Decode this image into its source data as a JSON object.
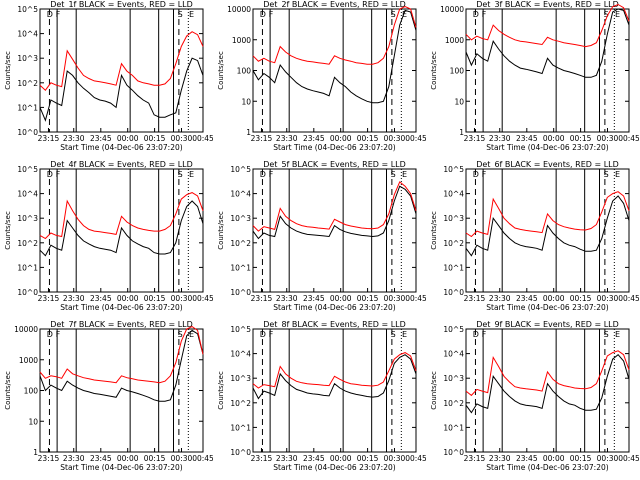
{
  "chart_data": [
    {
      "type": "line",
      "title": "Det_1f BLACK = Events, RED = LLD",
      "ylabel": "Counts/sec",
      "xlabel": "Start Time (04-Dec-06 23:07:20)",
      "xticks": [
        "23:15",
        "23:30",
        "23:45",
        "00:00",
        "00:15",
        "00:30",
        "00:45"
      ],
      "yscale": "log",
      "ylim": [
        1,
        100000
      ],
      "yticks": [
        "10^0",
        "10^1",
        "10^2",
        "10^3",
        "10^4",
        "10^5"
      ],
      "flags": [
        "D",
        "F",
        "S",
        "E"
      ],
      "series": [
        {
          "color": "#000000",
          "values": [
            10.0,
            3,
            20,
            15,
            12,
            300,
            200,
            100,
            60,
            40,
            25,
            20,
            18,
            15,
            10,
            200,
            80,
            50,
            30,
            20,
            15,
            5,
            4,
            4,
            5,
            6,
            50,
            300,
            1000,
            800,
            200
          ]
        },
        {
          "color": "#ff0000",
          "values": [
            80,
            50,
            100,
            80,
            70,
            2000,
            900,
            400,
            200,
            150,
            120,
            110,
            100,
            90,
            80,
            600,
            300,
            200,
            120,
            100,
            90,
            80,
            80,
            90,
            150,
            600,
            3000,
            8000,
            12000,
            9000,
            3000
          ]
        }
      ]
    },
    {
      "type": "line",
      "title": "Det_2f BLACK = Events, RED = LLD",
      "ylabel": "Counts/sec",
      "xlabel": "Start Time (04-Dec-06 23:07:20)",
      "xticks": [
        "23:15",
        "23:30",
        "23:45",
        "00:00",
        "00:15",
        "00:30",
        "00:45"
      ],
      "yscale": "log",
      "ylim": [
        1,
        10000
      ],
      "yticks": [
        "1",
        "10",
        "100",
        "1000",
        "10000"
      ],
      "flags": [
        "D",
        "F",
        "S",
        "E"
      ],
      "series": [
        {
          "color": "#000000",
          "values": [
            100,
            50,
            80,
            60,
            40,
            150,
            90,
            60,
            40,
            30,
            25,
            22,
            20,
            18,
            15,
            60,
            40,
            30,
            20,
            15,
            12,
            10,
            9,
            9,
            10,
            30,
            300,
            3000,
            9000,
            8000,
            2000
          ]
        },
        {
          "color": "#ff0000",
          "values": [
            300,
            200,
            250,
            200,
            180,
            600,
            400,
            300,
            250,
            220,
            200,
            190,
            180,
            170,
            160,
            300,
            250,
            220,
            200,
            180,
            170,
            160,
            160,
            180,
            250,
            600,
            3000,
            10000,
            12000,
            10000,
            2500
          ]
        }
      ]
    },
    {
      "type": "line",
      "title": "Det_3f BLACK = Events, RED = LLD",
      "ylabel": "Counts/sec",
      "xlabel": "Start Time (04-Dec-06 23:07:20)",
      "xticks": [
        "23:15",
        "23:30",
        "23:45",
        "00:00",
        "00:15",
        "00:30",
        "00:45"
      ],
      "yscale": "log",
      "ylim": [
        1,
        10000
      ],
      "yticks": [
        "1",
        "10",
        "100",
        "1000",
        "10000"
      ],
      "flags": [
        "D",
        "F",
        "S",
        "E"
      ],
      "series": [
        {
          "color": "#000000",
          "values": [
            400,
            150,
            350,
            250,
            200,
            900,
            500,
            300,
            200,
            150,
            120,
            110,
            100,
            90,
            80,
            250,
            150,
            120,
            100,
            90,
            80,
            70,
            60,
            60,
            70,
            200,
            1500,
            8000,
            10000,
            9000,
            3000
          ]
        },
        {
          "color": "#ff0000",
          "values": [
            1500,
            1000,
            1300,
            1100,
            1000,
            3000,
            2000,
            1500,
            1200,
            1000,
            900,
            850,
            800,
            750,
            700,
            1200,
            1000,
            900,
            800,
            750,
            700,
            650,
            600,
            650,
            800,
            2000,
            6000,
            12000,
            14000,
            11000,
            4000
          ]
        }
      ]
    },
    {
      "type": "line",
      "title": "Det_4f BLACK = Events, RED = LLD",
      "ylabel": "Counts/sec",
      "xlabel": "Start Time (04-Dec-06 23:07:20)",
      "xticks": [
        "23:15",
        "23:30",
        "23:45",
        "00:00",
        "00:15",
        "00:30",
        "00:45"
      ],
      "yscale": "log",
      "ylim": [
        1,
        100000
      ],
      "yticks": [
        "10^0",
        "10^1",
        "10^2",
        "10^3",
        "10^4",
        "10^5"
      ],
      "flags": [
        "D",
        "F",
        "S",
        "E"
      ],
      "series": [
        {
          "color": "#000000",
          "values": [
            50,
            30,
            80,
            60,
            50,
            800,
            400,
            200,
            120,
            90,
            70,
            60,
            55,
            50,
            40,
            400,
            200,
            120,
            90,
            70,
            60,
            40,
            35,
            35,
            40,
            100,
            800,
            3000,
            5000,
            3000,
            600
          ]
        },
        {
          "color": "#ff0000",
          "values": [
            200,
            150,
            250,
            200,
            180,
            5000,
            2000,
            900,
            500,
            350,
            300,
            280,
            260,
            240,
            220,
            1200,
            700,
            500,
            400,
            350,
            320,
            300,
            300,
            350,
            500,
            1500,
            6000,
            9000,
            11000,
            8000,
            2000
          ]
        }
      ]
    },
    {
      "type": "line",
      "title": "Det_5f BLACK = Events, RED = LLD",
      "ylabel": "Counts/sec",
      "xlabel": "Start Time (04-Dec-06 23:07:20)",
      "xticks": [
        "23:15",
        "23:30",
        "23:45",
        "00:00",
        "00:15",
        "00:30",
        "00:45"
      ],
      "yscale": "log",
      "ylim": [
        1,
        100000
      ],
      "yticks": [
        "10^0",
        "10^1",
        "10^2",
        "10^3",
        "10^4",
        "10^5"
      ],
      "flags": [
        "D",
        "F",
        "S",
        "E"
      ],
      "series": [
        {
          "color": "#000000",
          "values": [
            300,
            150,
            250,
            200,
            180,
            1200,
            600,
            400,
            300,
            250,
            220,
            210,
            200,
            190,
            180,
            500,
            350,
            280,
            240,
            220,
            200,
            190,
            180,
            190,
            250,
            800,
            5000,
            20000,
            15000,
            8000,
            1500
          ]
        },
        {
          "color": "#ff0000",
          "values": [
            500,
            300,
            450,
            400,
            350,
            2500,
            1200,
            800,
            600,
            500,
            450,
            430,
            400,
            380,
            360,
            900,
            700,
            550,
            480,
            440,
            400,
            380,
            370,
            400,
            550,
            1500,
            9000,
            30000,
            20000,
            10000,
            2000
          ]
        }
      ]
    },
    {
      "type": "line",
      "title": "Det_6f BLACK = Events, RED = LLD",
      "ylabel": "Counts/sec",
      "xlabel": "Start Time (04-Dec-06 23:07:20)",
      "xticks": [
        "23:15",
        "23:30",
        "23:45",
        "00:00",
        "00:15",
        "00:30",
        "00:45"
      ],
      "yscale": "log",
      "ylim": [
        1,
        100000
      ],
      "yticks": [
        "10^0",
        "10^1",
        "10^2",
        "10^3",
        "10^4",
        "10^5"
      ],
      "flags": [
        "D",
        "F",
        "S",
        "E"
      ],
      "series": [
        {
          "color": "#000000",
          "values": [
            60,
            30,
            80,
            60,
            50,
            1000,
            500,
            250,
            150,
            100,
            80,
            70,
            65,
            60,
            50,
            500,
            250,
            150,
            100,
            80,
            70,
            55,
            45,
            45,
            50,
            150,
            1000,
            5000,
            8000,
            4000,
            800
          ]
        },
        {
          "color": "#ff0000",
          "values": [
            250,
            180,
            300,
            250,
            220,
            6000,
            2500,
            1000,
            600,
            400,
            350,
            320,
            300,
            280,
            260,
            1500,
            800,
            550,
            450,
            400,
            360,
            340,
            330,
            380,
            550,
            1800,
            7000,
            10000,
            12000,
            8000,
            2000
          ]
        }
      ]
    },
    {
      "type": "line",
      "title": "Det_7f BLACK = Events, RED = LLD",
      "ylabel": "Counts/sec",
      "xlabel": "Start Time (04-Dec-06 23:07:20)",
      "xticks": [
        "23:15",
        "23:30",
        "23:45",
        "00:00",
        "00:15",
        "00:30",
        "00:45"
      ],
      "yscale": "log",
      "ylim": [
        1,
        10000
      ],
      "yticks": [
        "1",
        "10",
        "100",
        "1000",
        "10000"
      ],
      "flags": [
        "D",
        "F",
        "S",
        "E"
      ],
      "series": [
        {
          "color": "#000000",
          "values": [
            300,
            100,
            150,
            120,
            100,
            200,
            150,
            120,
            100,
            90,
            80,
            75,
            70,
            65,
            60,
            120,
            100,
            90,
            80,
            70,
            60,
            50,
            45,
            45,
            50,
            150,
            1000,
            6000,
            9000,
            7000,
            1500
          ]
        },
        {
          "color": "#ff0000",
          "values": [
            400,
            250,
            300,
            280,
            250,
            500,
            350,
            300,
            260,
            240,
            220,
            210,
            200,
            190,
            180,
            300,
            260,
            240,
            220,
            210,
            200,
            190,
            180,
            200,
            300,
            800,
            4000,
            10000,
            12000,
            9000,
            1500
          ]
        }
      ]
    },
    {
      "type": "line",
      "title": "Det_8f BLACK = Events, RED = LLD",
      "ylabel": "Counts/sec",
      "xlabel": "Start Time (04-Dec-06 23:07:20)",
      "xticks": [
        "23:15",
        "23:30",
        "23:45",
        "00:00",
        "00:15",
        "00:30",
        "00:45"
      ],
      "yscale": "log",
      "ylim": [
        1,
        100000
      ],
      "yticks": [
        "10^0",
        "10^1",
        "10^2",
        "10^3",
        "10^4",
        "10^5"
      ],
      "flags": [
        "D",
        "F",
        "S",
        "E"
      ],
      "series": [
        {
          "color": "#000000",
          "values": [
            400,
            150,
            300,
            250,
            200,
            1500,
            800,
            500,
            350,
            300,
            250,
            230,
            220,
            200,
            190,
            600,
            400,
            300,
            250,
            220,
            200,
            180,
            170,
            180,
            250,
            800,
            4000,
            7000,
            9000,
            6000,
            1500
          ]
        },
        {
          "color": "#ff0000",
          "values": [
            600,
            400,
            550,
            500,
            450,
            3000,
            1500,
            1000,
            750,
            650,
            600,
            570,
            550,
            520,
            500,
            1200,
            900,
            700,
            600,
            560,
            520,
            500,
            480,
            520,
            700,
            2000,
            6000,
            9000,
            11000,
            8000,
            2000
          ]
        }
      ]
    },
    {
      "type": "line",
      "title": "Det_9f BLACK = Events, RED = LLD",
      "ylabel": "Counts/sec",
      "xlabel": "Start Time (04-Dec-06 23:07:20)",
      "xticks": [
        "23:15",
        "23:30",
        "23:45",
        "00:00",
        "00:15",
        "00:30",
        "00:45"
      ],
      "yscale": "log",
      "ylim": [
        1,
        100000
      ],
      "yticks": [
        "10^0",
        "10^1",
        "10^2",
        "10^3",
        "10^4",
        "10^5"
      ],
      "flags": [
        "D",
        "F",
        "S",
        "E"
      ],
      "series": [
        {
          "color": "#000000",
          "values": [
            80,
            40,
            90,
            70,
            60,
            1200,
            600,
            300,
            180,
            120,
            90,
            80,
            75,
            70,
            60,
            600,
            300,
            180,
            120,
            90,
            80,
            60,
            50,
            50,
            55,
            160,
            1200,
            6000,
            9000,
            5000,
            900
          ]
        },
        {
          "color": "#ff0000",
          "values": [
            300,
            200,
            350,
            300,
            260,
            7000,
            3000,
            1200,
            700,
            450,
            400,
            370,
            350,
            330,
            300,
            1800,
            900,
            600,
            500,
            450,
            400,
            380,
            370,
            420,
            600,
            2000,
            8000,
            11000,
            13000,
            9000,
            2200
          ]
        }
      ]
    }
  ]
}
